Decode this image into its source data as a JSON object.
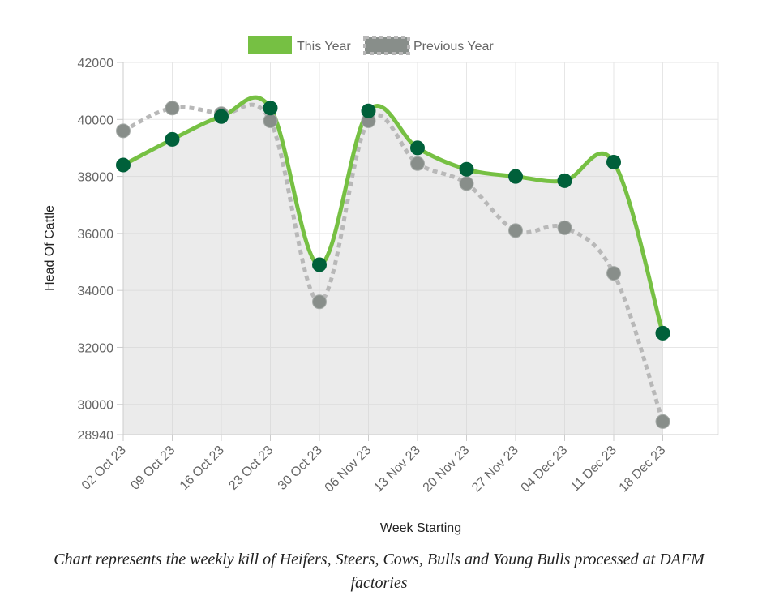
{
  "chart_data": {
    "type": "line",
    "legend": {
      "position": "top",
      "entries": [
        "This Year",
        "Previous Year"
      ]
    },
    "xlabel": "Week Starting",
    "ylabel": "Head Of Cattle",
    "x": [
      "02 Oct 23",
      "09 Oct 23",
      "16 Oct 23",
      "23 Oct 23",
      "30 Oct 23",
      "06 Nov 23",
      "13 Nov 23",
      "20 Nov 23",
      "27 Nov 23",
      "04 Dec 23",
      "11 Dec 23",
      "18 Dec 23"
    ],
    "ylim": [
      28940,
      42000
    ],
    "yticks": [
      28940,
      30000,
      32000,
      34000,
      36000,
      38000,
      40000,
      42000
    ],
    "grid": true,
    "series": [
      {
        "name": "This Year",
        "color": "#76c043",
        "marker_color": "#00603a",
        "line_style": "solid",
        "values": [
          38400,
          39300,
          40100,
          40400,
          34900,
          40300,
          39000,
          38250,
          38000,
          37850,
          38500,
          32500
        ]
      },
      {
        "name": "Previous Year",
        "color": "#b8b8b8",
        "marker_color": "#888e8a",
        "line_style": "dashed",
        "values": [
          39600,
          40400,
          40200,
          39950,
          33600,
          39950,
          38450,
          37750,
          36100,
          36200,
          34600,
          29400
        ]
      }
    ]
  },
  "caption": "Chart represents the weekly kill of Heifers, Steers, Cows, Bulls and Young Bulls processed at DAFM factories"
}
